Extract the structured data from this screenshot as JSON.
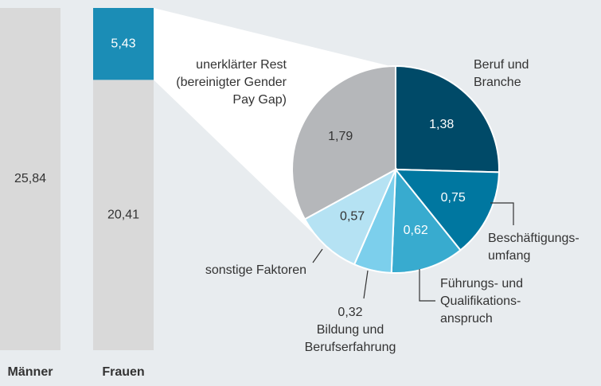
{
  "chart_data": [
    {
      "type": "bar",
      "stacked": true,
      "categories": [
        "Männer",
        "Frauen"
      ],
      "series": [
        {
          "color": "#d9d9d9",
          "values": [
            25.84,
            20.41
          ],
          "value_labels": [
            "25,84",
            "20,41"
          ]
        },
        {
          "color": "#1b8db6",
          "values": [
            null,
            5.43
          ],
          "value_labels": [
            null,
            "5,43"
          ]
        }
      ]
    },
    {
      "type": "pie",
      "labels": [
        "Beruf und\nBranche",
        "Beschäftigungs-\numfang",
        "Führungs- und\nQualifikations-\nanspruch",
        "Bildung und\nBerufserfahrung",
        "sonstige Faktoren",
        "unerklärter Rest\n(bereinigter Gender\nPay Gap)"
      ],
      "values": [
        1.38,
        0.75,
        0.62,
        0.32,
        0.57,
        1.79
      ],
      "value_labels": [
        "1,38",
        "0,75",
        "0,62",
        "0,32",
        "0,57",
        "1,79"
      ],
      "colors": [
        "#004a68",
        "#0077a0",
        "#38abcf",
        "#7ccfec",
        "#b5e2f3",
        "#b5b7ba"
      ]
    }
  ]
}
